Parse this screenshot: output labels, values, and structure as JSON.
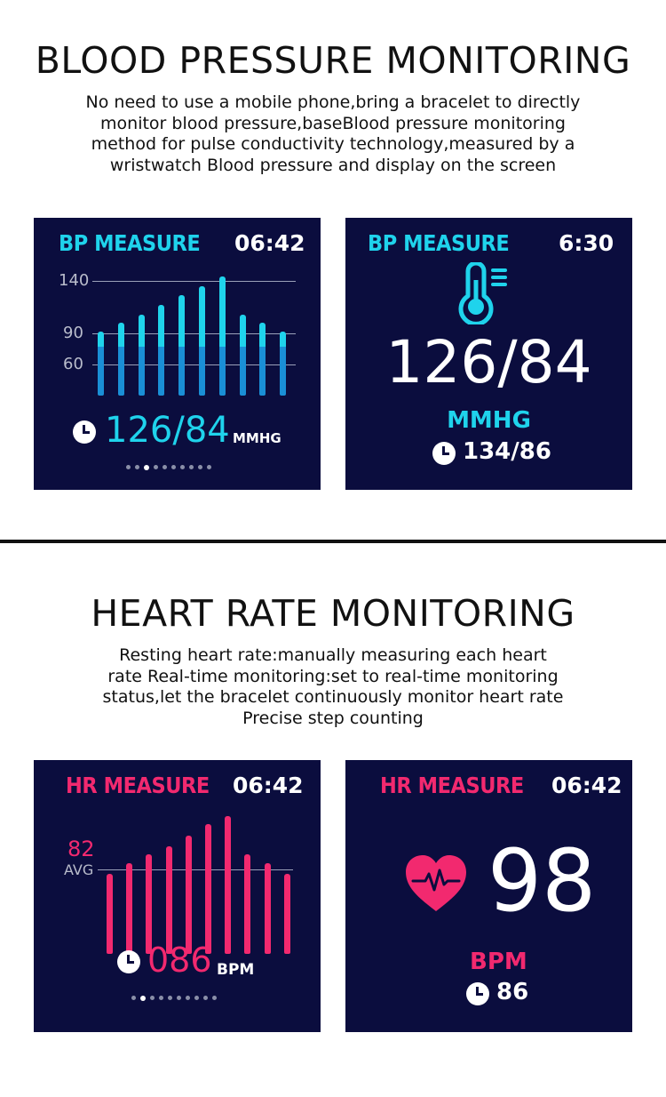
{
  "bp_section": {
    "title": "BLOOD PRESSURE MONITORING",
    "desc_lines": [
      "No need to use a mobile phone,bring a bracelet to directly",
      "monitor blood pressure,baseBlood pressure monitoring",
      "method for pulse conductivity technology,measured by a",
      "wristwatch Blood pressure and display on the screen"
    ],
    "screen1": {
      "title": "BP MEASURE",
      "time": "06:42",
      "ticks": [
        "140",
        "90",
        "60"
      ],
      "reading": "126/84",
      "unit": "MMHG",
      "bars": [
        0.54,
        0.61,
        0.68,
        0.76,
        0.84,
        0.92,
        1.0,
        0.68,
        0.61,
        0.54
      ],
      "color": "#1fd3ec",
      "page_dots": 10,
      "active_dot": 2
    },
    "screen2": {
      "title": "BP MEASURE",
      "time": "6:30",
      "icon": "thermometer-icon",
      "reading": "126/84",
      "unit": "MMHG",
      "last": "134/86",
      "color": "#1fd3ec"
    }
  },
  "hr_section": {
    "title": "HEART RATE MONITORING",
    "desc_lines": [
      "Resting heart rate:manually measuring each heart",
      "rate Real-time monitoring:set to real-time monitoring",
      "status,let the bracelet continuously monitor heart rate",
      "Precise step counting"
    ],
    "screen1": {
      "title": "HR MEASURE",
      "time": "06:42",
      "avg_value": "82",
      "avg_label": "AVG",
      "reading": "086",
      "unit": "BPM",
      "bars": [
        0.58,
        0.66,
        0.72,
        0.78,
        0.86,
        0.94,
        1.0,
        0.72,
        0.66,
        0.58
      ],
      "color": "#f2296f",
      "page_dots": 10,
      "active_dot": 1
    },
    "screen2": {
      "title": "HR MEASURE",
      "time": "06:42",
      "icon": "heart-pulse-icon",
      "reading": "98",
      "unit": "BPM",
      "last": "86",
      "color": "#f2296f"
    }
  }
}
